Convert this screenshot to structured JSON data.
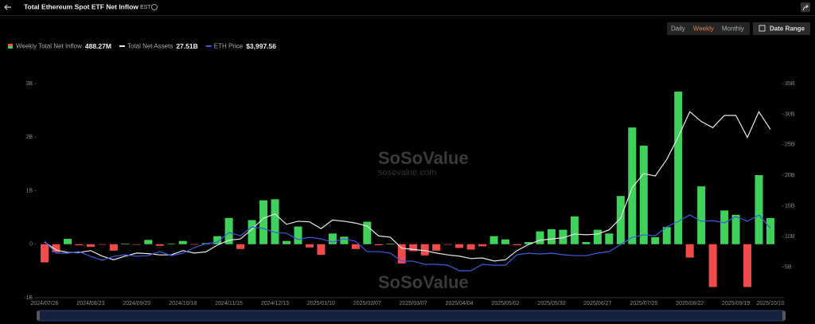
{
  "ui": {
    "periods": [
      "Daily",
      "Weekly",
      "Monthly"
    ],
    "active_period": 1,
    "date_range": "Date Range",
    "watermark": [
      "SoSoValue",
      "sosovalue.com"
    ]
  },
  "chart_data": {
    "type": "bar",
    "title": "Total Ethereum Spot ETF Net Inflow",
    "timezone": "EST",
    "categories": [
      "2024/07/26",
      null,
      null,
      null,
      "2024/08/23",
      null,
      null,
      null,
      "2024/09/20",
      null,
      null,
      null,
      "2024/10/18",
      null,
      null,
      null,
      "2024/11/15",
      null,
      null,
      null,
      "2024/12/13",
      null,
      null,
      null,
      "2025/01/10",
      null,
      null,
      null,
      "2025/02/07",
      null,
      null,
      null,
      "2025/03/07",
      null,
      null,
      null,
      "2025/04/04",
      null,
      null,
      null,
      "2025/05/02",
      null,
      null,
      null,
      "2025/05/30",
      null,
      null,
      null,
      "2025/06/27",
      null,
      null,
      null,
      "2025/07/25",
      null,
      null,
      null,
      "2025/08/22",
      null,
      null,
      null,
      "2025/09/19",
      null,
      null,
      "2025/10/10"
    ],
    "ylim": [
      -1,
      3
    ],
    "yticks": [
      {
        "value": -1,
        "label": "-1B"
      },
      0,
      {
        "value": 1,
        "label": "1B"
      },
      {
        "value": 2,
        "label": "2B"
      },
      {
        "value": 3,
        "label": "3B"
      }
    ],
    "y2lim": [
      0,
      35
    ],
    "y2ticks": [
      {
        "value": 5,
        "label": "5B"
      },
      {
        "value": 10,
        "label": "10B"
      },
      {
        "value": 15,
        "label": "15B"
      },
      {
        "value": 20,
        "label": "20B"
      },
      {
        "value": 25,
        "label": "25B"
      },
      {
        "value": 30,
        "label": "30B"
      },
      {
        "value": 35,
        "label": "35B"
      }
    ],
    "y3lim": [
      0,
      12300
    ],
    "grid": false,
    "series": [
      {
        "name": "Weekly Total Net Inflow",
        "type": "bar",
        "color": "#3fd15a",
        "negative_color": "#f04a4a",
        "latest_label": "488.27M",
        "values": [
          -0.34,
          -0.15,
          0.1,
          -0.02,
          -0.05,
          -0.01,
          -0.12,
          0.01,
          -0.01,
          0.08,
          -0.03,
          0.01,
          0.06,
          -0.01,
          0.02,
          0.15,
          0.49,
          -0.09,
          0.45,
          0.82,
          0.84,
          0.06,
          0.33,
          -0.06,
          -0.2,
          0.2,
          0.14,
          -0.09,
          0.42,
          -0.02,
          0.01,
          -0.36,
          -0.13,
          -0.21,
          -0.12,
          -0.01,
          -0.07,
          -0.1,
          -0.04,
          0.15,
          0.09,
          -0.02,
          0.04,
          0.24,
          0.28,
          0.27,
          0.52,
          0.04,
          0.27,
          0.2,
          0.9,
          2.18,
          1.84,
          0.13,
          0.32,
          2.85,
          -0.25,
          1.08,
          -0.8,
          0.63,
          0.55,
          -0.8,
          1.29,
          0.48827
        ]
      },
      {
        "name": "Total Net Assets",
        "type": "line",
        "axis": "y2",
        "color": "#e8e8e8",
        "latest_label": "27.51B",
        "values": [
          9.1,
          7.8,
          7.4,
          7.4,
          7.7,
          6.8,
          6.2,
          6.8,
          7.3,
          7.2,
          7.0,
          7.0,
          7.7,
          7.3,
          7.5,
          8.6,
          9.4,
          9.6,
          11.2,
          13.0,
          13.7,
          12.0,
          12.5,
          12.4,
          11.3,
          12.7,
          12.5,
          12.2,
          11.7,
          10.1,
          9.9,
          8.1,
          7.9,
          7.7,
          7.3,
          7.0,
          6.8,
          6.4,
          6.5,
          6.0,
          6.2,
          7.7,
          8.7,
          9.4,
          9.6,
          9.8,
          10.4,
          10.3,
          10.4,
          11.1,
          13.0,
          18.0,
          20.3,
          19.9,
          22.6,
          26.3,
          30.4,
          28.8,
          27.8,
          29.8,
          29.8,
          26.2,
          30.4,
          27.51
        ]
      },
      {
        "name": "ETH Price",
        "type": "line",
        "axis": "y3",
        "color": "#3b5bdb",
        "latest_label": "$3,997.56",
        "values": [
          3240,
          2560,
          2560,
          2650,
          2380,
          2150,
          2380,
          2470,
          2380,
          2420,
          2650,
          2420,
          2560,
          2880,
          3110,
          3200,
          3750,
          3560,
          4070,
          3980,
          3750,
          3700,
          3340,
          3470,
          3380,
          3200,
          3380,
          3240,
          2650,
          2650,
          2560,
          2100,
          2100,
          1920,
          1920,
          1870,
          1550,
          1550,
          1920,
          1870,
          1870,
          2470,
          2560,
          2510,
          2560,
          2470,
          2420,
          2420,
          2560,
          2650,
          3060,
          3470,
          3610,
          3560,
          4070,
          4390,
          4750,
          4390,
          4430,
          4300,
          4660,
          4390,
          4750,
          3997.56
        ]
      }
    ]
  }
}
